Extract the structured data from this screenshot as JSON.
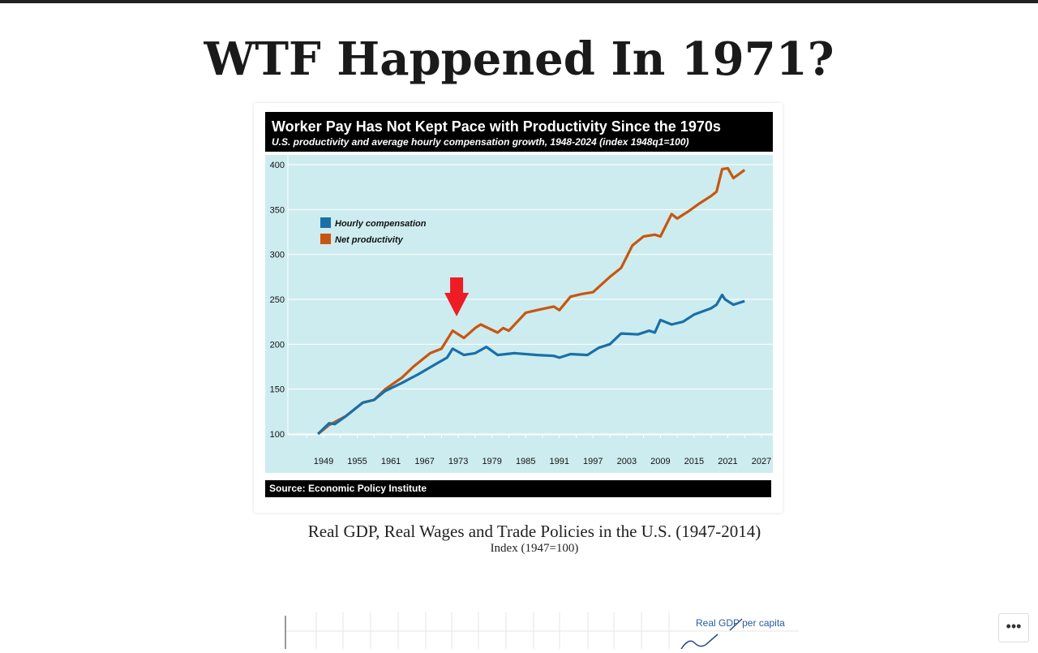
{
  "page": {
    "title": "WTF Happened In 1971?"
  },
  "figure1": {
    "title": "Worker Pay Has Not Kept Pace with Productivity Since the 1970s",
    "subtitle": "U.S. productivity and average hourly compensation growth, 1948-2024 (index 1948q1=100)",
    "source": "Source: Economic Policy Institute",
    "annotation": {
      "type": "red-down-arrow",
      "year": 1972.7,
      "color": "#ee1c25"
    }
  },
  "chart_data": {
    "type": "line",
    "title": "Worker Pay Has Not Kept Pace with Productivity Since the 1970s",
    "subtitle": "U.S. productivity and average hourly compensation growth, 1948-2024 (index 1948q1=100)",
    "xlabel": "",
    "ylabel": "",
    "xlim": [
      1945,
      2027
    ],
    "ylim": [
      80,
      410
    ],
    "xticks": [
      "1949",
      "1955",
      "1961",
      "1967",
      "1973",
      "1979",
      "1985",
      "1991",
      "1997",
      "2003",
      "2009",
      "2015",
      "2021",
      "2027"
    ],
    "yticks": [
      "100",
      "150",
      "200",
      "250",
      "300",
      "350",
      "400"
    ],
    "grid": "horizontal",
    "legend": "top-left",
    "series": [
      {
        "name": "Hourly compensation",
        "color": "#1a6fa8",
        "x": [
          1948,
          1950,
          1951,
          1953,
          1956,
          1958,
          1960,
          1963,
          1966,
          1969,
          1971,
          1972,
          1974,
          1976,
          1978,
          1980,
          1983,
          1987,
          1990,
          1991,
          1993,
          1996,
          1998,
          2000,
          2002,
          2005,
          2007,
          2008,
          2009,
          2011,
          2013,
          2015,
          2018,
          2019,
          2020,
          2020.5,
          2022,
          2024
        ],
        "y": [
          100,
          112,
          111,
          120,
          135,
          138,
          148,
          157,
          167,
          178,
          185,
          195,
          188,
          190,
          197,
          188,
          190,
          188,
          187,
          185,
          189,
          188,
          196,
          200,
          212,
          211,
          215,
          213,
          227,
          222,
          225,
          233,
          240,
          244,
          255,
          250,
          244,
          248
        ]
      },
      {
        "name": "Net productivity",
        "color": "#c8560f",
        "x": [
          1948,
          1950,
          1953,
          1956,
          1958,
          1960,
          1963,
          1965,
          1968,
          1970,
          1972,
          1974,
          1976,
          1977,
          1980,
          1981,
          1982,
          1985,
          1987,
          1990,
          1991,
          1993,
          1995,
          1997,
          2000,
          2002,
          2004,
          2006,
          2008,
          2009,
          2011,
          2012,
          2014,
          2016,
          2018,
          2019,
          2020,
          2021,
          2022,
          2024
        ],
        "y": [
          100,
          110,
          120,
          135,
          138,
          150,
          163,
          175,
          190,
          195,
          215,
          207,
          218,
          222,
          213,
          218,
          215,
          235,
          238,
          242,
          238,
          253,
          256,
          258,
          275,
          285,
          310,
          320,
          322,
          320,
          345,
          340,
          348,
          357,
          365,
          370,
          395,
          396,
          385,
          394
        ]
      }
    ]
  },
  "figure2": {
    "title": "Real GDP, Real Wages and Trade Policies in the U.S. (1947-2014)",
    "subtitle": "Index (1947=100)",
    "series_label": "Real GDP per capita"
  },
  "more_button": {
    "label": "•••"
  }
}
